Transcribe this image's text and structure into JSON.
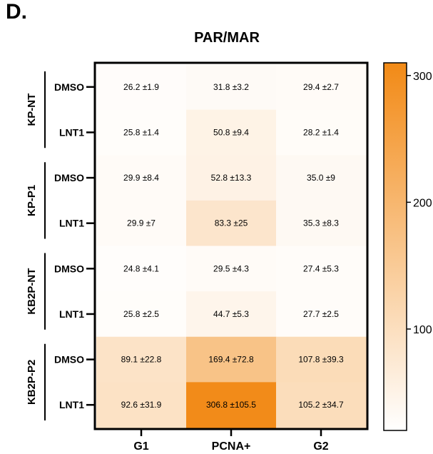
{
  "panel_label": "D.",
  "chart_data": {
    "type": "heatmap",
    "title": "PAR/MAR",
    "columns": [
      "G1",
      "PCNA+",
      "G2"
    ],
    "groups": [
      {
        "name": "KP-NT",
        "rows": [
          "DMSO",
          "LNT1"
        ]
      },
      {
        "name": "KP-P1",
        "rows": [
          "DMSO",
          "LNT1"
        ]
      },
      {
        "name": "KB2P-NT",
        "rows": [
          "DMSO",
          "LNT1"
        ]
      },
      {
        "name": "KB2P-P2",
        "rows": [
          "DMSO",
          "LNT1"
        ]
      }
    ],
    "values": [
      [
        26.2,
        31.8,
        29.4
      ],
      [
        25.8,
        50.8,
        28.2
      ],
      [
        29.9,
        52.8,
        35.0
      ],
      [
        29.9,
        83.3,
        35.3
      ],
      [
        24.8,
        29.5,
        27.4
      ],
      [
        25.8,
        44.7,
        27.7
      ],
      [
        89.1,
        169.4,
        107.8
      ],
      [
        92.6,
        306.8,
        105.2
      ]
    ],
    "cell_labels": [
      [
        "26.2 ±1.9",
        "31.8 ±3.2",
        "29.4 ±2.7"
      ],
      [
        "25.8 ±1.4",
        "50.8 ±9.4",
        "28.2 ±1.4"
      ],
      [
        "29.9 ±8.4",
        "52.8 ±13.3",
        "35.0 ±9"
      ],
      [
        "29.9 ±7",
        "83.3 ±25",
        "35.3 ±8.3"
      ],
      [
        "24.8 ±4.1",
        "29.5 ±4.3",
        "27.4 ±5.3"
      ],
      [
        "25.8 ±2.5",
        "44.7 ±5.3",
        "27.7 ±2.5"
      ],
      [
        "89.1 ±22.8",
        "169.4 ±72.8",
        "107.8 ±39.3"
      ],
      [
        "92.6 ±31.9",
        "306.8 ±105.5",
        "105.2 ±34.7"
      ]
    ],
    "colorbar": {
      "range": [
        20,
        310
      ],
      "ticks": [
        100,
        200,
        300
      ],
      "color_low": "#ffffff",
      "color_high": "#f28a16"
    }
  }
}
